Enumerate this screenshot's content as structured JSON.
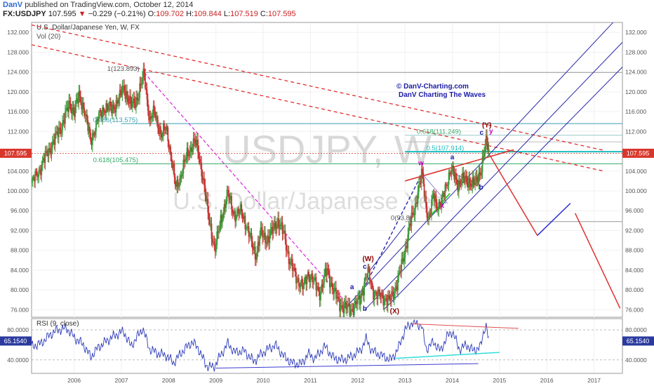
{
  "header": {
    "author": "DanV",
    "published": "published on TradingView.com, October 12, 2014",
    "symbol": "FX:USDJPY",
    "last": "107.595",
    "change": "−0.229 (−0.21%)",
    "o_label": "O:",
    "o": "109.702",
    "h_label": "H:",
    "h": "109.844",
    "l_label": "L:",
    "l": "107.519",
    "c_label": "C:",
    "c": "107.595"
  },
  "chart_data": [
    {
      "type": "candlestick",
      "title": "U.S. Dollar/Japanese Yen, W, FX",
      "subtitle": "Vol (20)",
      "watermark_symbol": "USDJPY, W",
      "watermark_name": "U.S. Dollar/Japanese Yen",
      "credit_line1": "© DanV-Charting.com",
      "credit_line2": "DanV Charting The Waves",
      "x_ticks": [
        "2006",
        "2007",
        "2008",
        "2009",
        "2010",
        "2011",
        "2012",
        "2013",
        "2014",
        "2015",
        "2016",
        "2017"
      ],
      "y_ticks": [
        "132.000",
        "128.000",
        "124.000",
        "120.000",
        "116.000",
        "112.000",
        "108.000",
        "104.000",
        "100.000",
        "96.000",
        "92.000",
        "88.000",
        "84.000",
        "80.000",
        "76.000"
      ],
      "y_tick_values": [
        132,
        128,
        124,
        120,
        116,
        112,
        108,
        104,
        100,
        96,
        92,
        88,
        84,
        80,
        76
      ],
      "ylim": [
        74.5,
        134
      ],
      "xlim": [
        2005.1,
        2017.6
      ],
      "last_price_label": "107.595",
      "last_price": 107.595,
      "price_path": [
        [
          2005.1,
          101.5
        ],
        [
          2005.25,
          104
        ],
        [
          2005.45,
          108
        ],
        [
          2005.6,
          110.5
        ],
        [
          2005.75,
          113.5
        ],
        [
          2005.9,
          117.5
        ],
        [
          2006.0,
          116
        ],
        [
          2006.1,
          119
        ],
        [
          2006.2,
          117
        ],
        [
          2006.35,
          110
        ],
        [
          2006.5,
          114.5
        ],
        [
          2006.65,
          117
        ],
        [
          2006.8,
          116.5
        ],
        [
          2006.95,
          118.5
        ],
        [
          2007.05,
          121
        ],
        [
          2007.2,
          117
        ],
        [
          2007.35,
          119
        ],
        [
          2007.45,
          122.5
        ],
        [
          2007.48,
          123.9
        ],
        [
          2007.55,
          118
        ],
        [
          2007.6,
          114
        ],
        [
          2007.7,
          116
        ],
        [
          2007.85,
          111
        ],
        [
          2007.95,
          113
        ],
        [
          2008.05,
          107
        ],
        [
          2008.15,
          100.5
        ],
        [
          2008.25,
          103
        ],
        [
          2008.4,
          107.5
        ],
        [
          2008.55,
          110
        ],
        [
          2008.62,
          108
        ],
        [
          2008.72,
          103
        ],
        [
          2008.82,
          96
        ],
        [
          2008.9,
          92
        ],
        [
          2008.98,
          88
        ],
        [
          2009.1,
          94
        ],
        [
          2009.25,
          99.5
        ],
        [
          2009.4,
          95
        ],
        [
          2009.55,
          96
        ],
        [
          2009.7,
          91
        ],
        [
          2009.85,
          87
        ],
        [
          2009.95,
          91.5
        ],
        [
          2010.1,
          90
        ],
        [
          2010.3,
          94
        ],
        [
          2010.45,
          91
        ],
        [
          2010.55,
          86
        ],
        [
          2010.7,
          82.5
        ],
        [
          2010.85,
          80.5
        ],
        [
          2010.95,
          83.5
        ],
        [
          2011.05,
          82
        ],
        [
          2011.2,
          79.5
        ],
        [
          2011.35,
          84
        ],
        [
          2011.5,
          79.5
        ],
        [
          2011.6,
          77.5
        ],
        [
          2011.7,
          76.5
        ],
        [
          2011.85,
          76
        ],
        [
          2011.95,
          77
        ],
        [
          2012.05,
          78
        ],
        [
          2012.15,
          82
        ],
        [
          2012.22,
          83.5
        ],
        [
          2012.32,
          80
        ],
        [
          2012.42,
          79
        ],
        [
          2012.55,
          78.5
        ],
        [
          2012.68,
          77.8
        ],
        [
          2012.78,
          80
        ],
        [
          2012.88,
          83
        ],
        [
          2012.98,
          87
        ],
        [
          2013.1,
          93
        ],
        [
          2013.2,
          96
        ],
        [
          2013.28,
          100.5
        ],
        [
          2013.36,
          103.5
        ],
        [
          2013.44,
          97
        ],
        [
          2013.5,
          94.5
        ],
        [
          2013.6,
          99
        ],
        [
          2013.68,
          97
        ],
        [
          2013.76,
          98
        ],
        [
          2013.84,
          99.5
        ],
        [
          2013.92,
          103
        ],
        [
          2013.98,
          105
        ],
        [
          2014.05,
          102.5
        ],
        [
          2014.12,
          101
        ],
        [
          2014.2,
          103
        ],
        [
          2014.3,
          101.5
        ],
        [
          2014.4,
          102
        ],
        [
          2014.52,
          101.5
        ],
        [
          2014.6,
          104
        ],
        [
          2014.66,
          107.5
        ],
        [
          2014.72,
          109.8
        ],
        [
          2014.77,
          107.595
        ]
      ],
      "wave_labels": [
        {
          "text": "(W)",
          "x": 2012.22,
          "y": 85.8,
          "color": "#8b0000"
        },
        {
          "text": "(X)",
          "x": 2012.78,
          "y": 75.3,
          "color": "#8b0000"
        },
        {
          "text": "(Y)",
          "x": 2014.73,
          "y": 112.8,
          "color": "#8b0000"
        },
        {
          "text": "a",
          "x": 2011.88,
          "y": 80.2,
          "color": "#1a1aa6"
        },
        {
          "text": "b",
          "x": 2012.15,
          "y": 75.8,
          "color": "#1a1aa6"
        },
        {
          "text": "c",
          "x": 2012.15,
          "y": 84.3,
          "color": "#1a1aa6"
        },
        {
          "text": "w",
          "x": 2013.34,
          "y": 105.2,
          "color": "#cc00cc"
        },
        {
          "text": "x",
          "x": 2013.79,
          "y": 96.6,
          "color": "#cc00cc"
        },
        {
          "text": "a",
          "x": 2014.0,
          "y": 106.4,
          "color": "#1a1aa6"
        },
        {
          "text": "b",
          "x": 2014.61,
          "y": 100.3,
          "color": "#1a1aa6"
        },
        {
          "text": "y",
          "x": 2014.82,
          "y": 111.6,
          "color": "#cc00cc"
        },
        {
          "text": "c",
          "x": 2014.62,
          "y": 111.3,
          "color": "#1a1aa6"
        }
      ],
      "fib_levels": [
        {
          "text": "1(123.893)",
          "x": 2006.7,
          "y": 124.2,
          "color": "#555555"
        },
        {
          "text": "0.786(113.575)",
          "x": 2006.4,
          "y": 113.9,
          "color": "#3a9fb0"
        },
        {
          "text": "0.618(105.475)",
          "x": 2006.4,
          "y": 105.8,
          "color": "#33aa66"
        },
        {
          "text": "0(93.8)",
          "x": 2012.7,
          "y": 94.1,
          "color": "#555555"
        },
        {
          "text": "0.618(111.249)",
          "x": 2013.25,
          "y": 111.55,
          "color": "#33aa66"
        },
        {
          "text": "0.5(107.914)",
          "x": 2013.45,
          "y": 108.2,
          "color": "#1bbfbf"
        }
      ],
      "projection_path": [
        [
          2014.77,
          107.595
        ],
        [
          2015.8,
          91
        ],
        [
          2016.5,
          97.5
        ]
      ],
      "projection_path2": [
        [
          2016.6,
          95.5
        ],
        [
          2017.55,
          76.3
        ]
      ]
    },
    {
      "type": "line",
      "title": "RSI (9, close)",
      "y_ticks": [
        "80.0000",
        "40.0000"
      ],
      "y_tick_values": [
        80,
        40
      ],
      "ylim": [
        22,
        95
      ],
      "last_value_label": "65.1540",
      "last_value": 65.154,
      "rsi_path": [
        [
          2005.1,
          58
        ],
        [
          2005.3,
          62
        ],
        [
          2005.5,
          74
        ],
        [
          2005.65,
          80
        ],
        [
          2005.85,
          82
        ],
        [
          2006.0,
          70
        ],
        [
          2006.2,
          60
        ],
        [
          2006.35,
          44
        ],
        [
          2006.5,
          56
        ],
        [
          2006.7,
          66
        ],
        [
          2006.9,
          74
        ],
        [
          2007.05,
          78
        ],
        [
          2007.2,
          58
        ],
        [
          2007.45,
          82
        ],
        [
          2007.6,
          54
        ],
        [
          2007.8,
          48
        ],
        [
          2007.95,
          46
        ],
        [
          2008.1,
          36
        ],
        [
          2008.3,
          52
        ],
        [
          2008.5,
          64
        ],
        [
          2008.62,
          56
        ],
        [
          2008.8,
          32
        ],
        [
          2008.95,
          30
        ],
        [
          2009.1,
          46
        ],
        [
          2009.25,
          62
        ],
        [
          2009.4,
          50
        ],
        [
          2009.6,
          52
        ],
        [
          2009.8,
          38
        ],
        [
          2010.0,
          50
        ],
        [
          2010.25,
          60
        ],
        [
          2010.45,
          44
        ],
        [
          2010.6,
          36
        ],
        [
          2010.8,
          34
        ],
        [
          2010.95,
          48
        ],
        [
          2011.1,
          42
        ],
        [
          2011.3,
          58
        ],
        [
          2011.5,
          42
        ],
        [
          2011.7,
          40
        ],
        [
          2011.85,
          44
        ],
        [
          2012.05,
          52
        ],
        [
          2012.18,
          68
        ],
        [
          2012.3,
          52
        ],
        [
          2012.5,
          46
        ],
        [
          2012.7,
          40
        ],
        [
          2012.85,
          54
        ],
        [
          2013.0,
          80
        ],
        [
          2013.15,
          90
        ],
        [
          2013.35,
          86
        ],
        [
          2013.45,
          54
        ],
        [
          2013.6,
          64
        ],
        [
          2013.75,
          52
        ],
        [
          2013.9,
          72
        ],
        [
          2014.0,
          78
        ],
        [
          2014.15,
          54
        ],
        [
          2014.3,
          60
        ],
        [
          2014.45,
          52
        ],
        [
          2014.6,
          58
        ],
        [
          2014.68,
          82
        ],
        [
          2014.72,
          86
        ],
        [
          2014.77,
          65
        ]
      ]
    }
  ]
}
